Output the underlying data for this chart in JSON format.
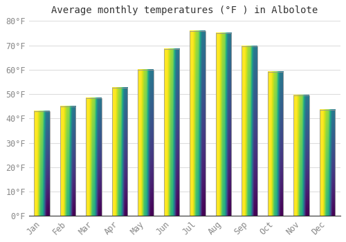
{
  "title": "Average monthly temperatures (°F ) in Albolote",
  "months": [
    "Jan",
    "Feb",
    "Mar",
    "Apr",
    "May",
    "Jun",
    "Jul",
    "Aug",
    "Sep",
    "Oct",
    "Nov",
    "Dec"
  ],
  "values": [
    43.0,
    45.0,
    48.5,
    52.5,
    60.0,
    68.5,
    76.0,
    75.0,
    69.5,
    59.0,
    49.5,
    43.5
  ],
  "bar_color_bottom": "#FFA500",
  "bar_color_top": "#FFD966",
  "bar_edge_color": "#999999",
  "background_color": "#FFFFFF",
  "plot_bg_color": "#FFFFFF",
  "grid_color": "#DDDDDD",
  "text_color": "#888888",
  "title_color": "#333333",
  "ylim": [
    0,
    80
  ],
  "yticks": [
    0,
    10,
    20,
    30,
    40,
    50,
    60,
    70,
    80
  ],
  "title_fontsize": 10,
  "tick_fontsize": 8.5,
  "bar_width": 0.6
}
